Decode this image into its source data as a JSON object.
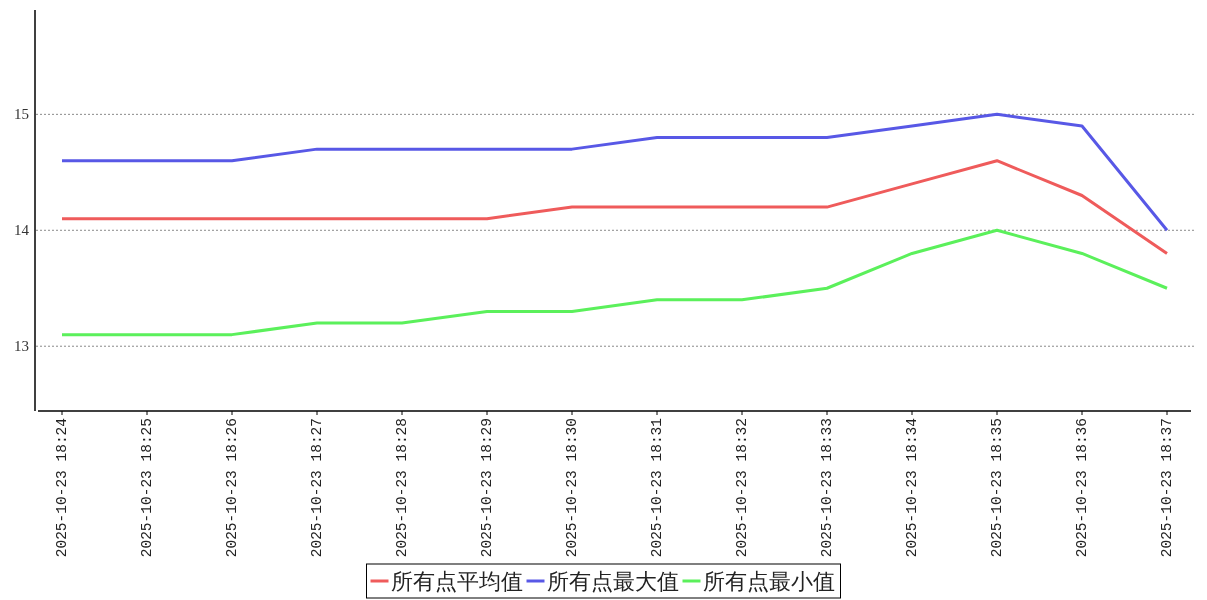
{
  "chart_data": {
    "type": "line",
    "categories": [
      "2025-10-23 18:24",
      "2025-10-23 18:25",
      "2025-10-23 18:26",
      "2025-10-23 18:27",
      "2025-10-23 18:28",
      "2025-10-23 18:29",
      "2025-10-23 18:30",
      "2025-10-23 18:31",
      "2025-10-23 18:32",
      "2025-10-23 18:33",
      "2025-10-23 18:34",
      "2025-10-23 18:35",
      "2025-10-23 18:36",
      "2025-10-23 18:37"
    ],
    "series": [
      {
        "name": "所有点平均值",
        "color": "#ef5b5b",
        "values": [
          14.1,
          14.1,
          14.1,
          14.1,
          14.1,
          14.1,
          14.2,
          14.2,
          14.2,
          14.2,
          14.4,
          14.6,
          14.3,
          13.8
        ]
      },
      {
        "name": "所有点最大值",
        "color": "#5858e6",
        "values": [
          14.6,
          14.6,
          14.6,
          14.7,
          14.7,
          14.7,
          14.7,
          14.8,
          14.8,
          14.8,
          14.9,
          15.0,
          14.9,
          14.0
        ]
      },
      {
        "name": "所有点最小值",
        "color": "#5bf05b",
        "values": [
          13.1,
          13.1,
          13.1,
          13.2,
          13.2,
          13.3,
          13.3,
          13.4,
          13.4,
          13.5,
          13.8,
          14.0,
          13.8,
          13.5
        ]
      }
    ],
    "ylim": [
      12.45,
      15.9
    ],
    "yticks": [
      13,
      14,
      15
    ],
    "grid": "y",
    "legend": "bottom",
    "line_style": "solid"
  }
}
